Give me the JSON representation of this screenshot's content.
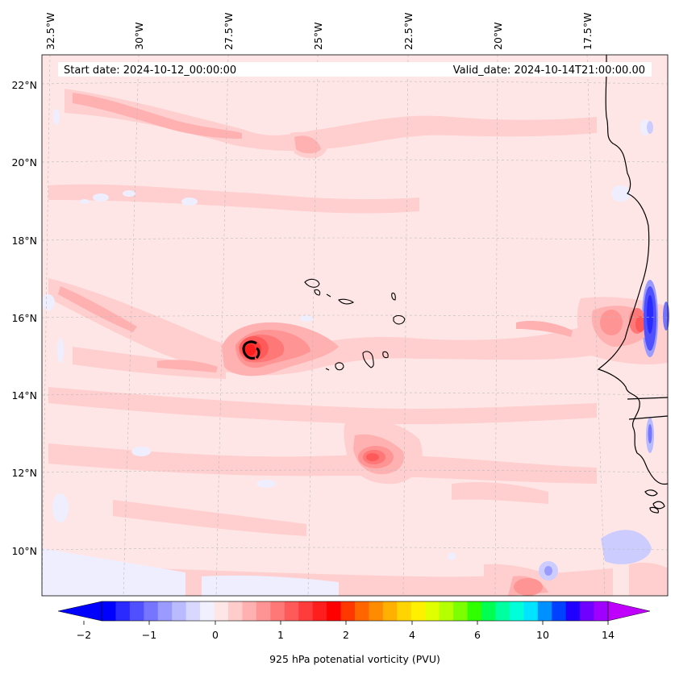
{
  "map": {
    "start_date_text": "Start date: 2024-10-12_00:00:00",
    "valid_date_text": "Valid_date: 2024-10-14T21:00:00.00",
    "lon_labels": [
      "32.5°W",
      "30°W",
      "27.5°W",
      "25°W",
      "22.5°W",
      "20°W",
      "17.5°W"
    ],
    "lat_labels": [
      "22°N",
      "20°N",
      "18°N",
      "16°N",
      "14°N",
      "12°N",
      "10°N"
    ],
    "variable": "925 hPa potential vorticity",
    "colorbar_label": "925 hPa potenatial vorticity (PVU)",
    "colorbar_ticks": [
      "−2",
      "−1",
      "0",
      "1",
      "2",
      "4",
      "6",
      "10",
      "14"
    ],
    "colorbar_colors": [
      "#0000ff",
      "#2a2aff",
      "#5050ff",
      "#7575ff",
      "#9a9aff",
      "#babaff",
      "#d8d8ff",
      "#f0f0ff",
      "#ffe6e6",
      "#ffcccc",
      "#ffb0b0",
      "#ff9494",
      "#ff7878",
      "#ff5a5a",
      "#ff3c3c",
      "#ff1e1e",
      "#ff0000",
      "#ff3800",
      "#ff6600",
      "#ff8c00",
      "#ffb000",
      "#ffd400",
      "#fff000",
      "#e0ff00",
      "#b4ff00",
      "#7cff00",
      "#30ff00",
      "#00ff50",
      "#00ffa0",
      "#00ffd8",
      "#00e4ff",
      "#0090ff",
      "#0040ff",
      "#2000ff",
      "#7000ff",
      "#a000ff"
    ],
    "extend_left_color": "#0000ff",
    "extend_right_color": "#c000ff",
    "background_color": "#ffe6e6"
  }
}
